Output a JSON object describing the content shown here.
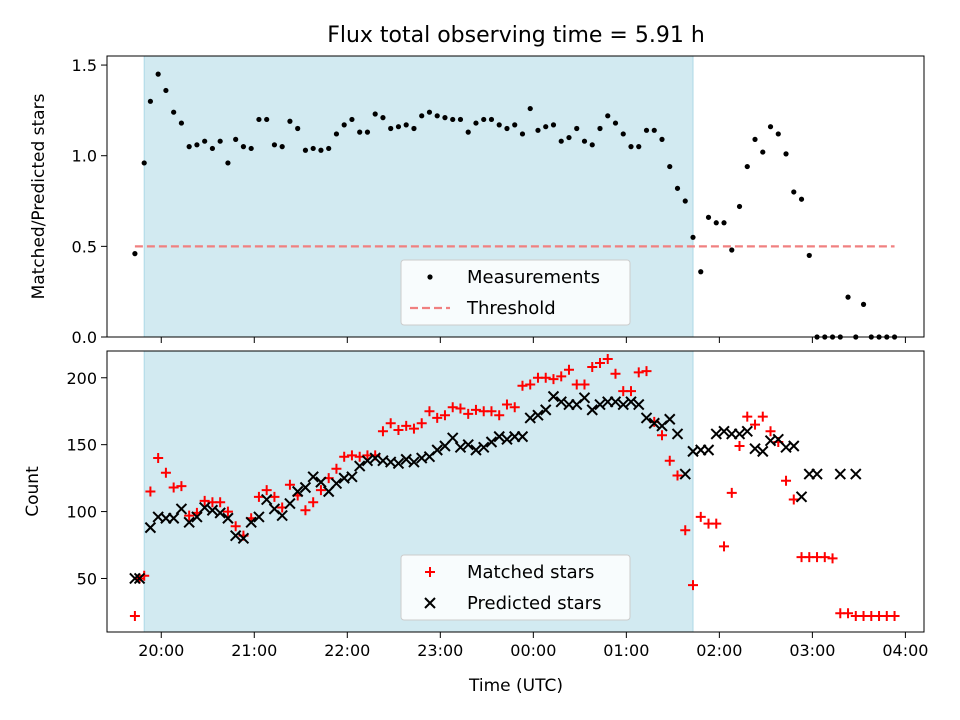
{
  "chart_data": {
    "type": "scatter",
    "title": "Flux total observing time = 5.91 h",
    "xlabel": "Time (UTC)",
    "x_tick_labels": [
      "20:00",
      "21:00",
      "22:00",
      "23:00",
      "00:00",
      "01:00",
      "02:00",
      "03:00",
      "04:00"
    ],
    "x_range": [
      "19:25",
      "04:12"
    ],
    "shaded_span": [
      "19:49",
      "01:43"
    ],
    "colors": {
      "measurements": "#000000",
      "threshold": "#f08080",
      "matched": "#ff0000",
      "predicted": "#000000",
      "shade": "#add8e6"
    },
    "panels": [
      {
        "ylabel": "Matched/Predicted stars",
        "ylim": [
          0,
          1.55
        ],
        "y_ticks": [
          "0.0",
          "0.5",
          "1.0",
          "1.5"
        ],
        "legend_position": "lower-center",
        "series": [
          {
            "name": "Measurements",
            "marker": "dot",
            "x": [
              "19:43",
              "19:49",
              "19:53",
              "19:58",
              "20:03",
              "20:08",
              "20:13",
              "20:18",
              "20:23",
              "20:28",
              "20:33",
              "20:38",
              "20:43",
              "20:48",
              "20:53",
              "20:58",
              "21:03",
              "21:08",
              "21:13",
              "21:18",
              "21:23",
              "21:28",
              "21:33",
              "21:38",
              "21:43",
              "21:48",
              "21:53",
              "21:58",
              "22:03",
              "22:08",
              "22:13",
              "22:18",
              "22:23",
              "22:28",
              "22:33",
              "22:38",
              "22:43",
              "22:48",
              "22:53",
              "22:58",
              "23:03",
              "23:08",
              "23:13",
              "23:18",
              "23:23",
              "23:28",
              "23:33",
              "23:38",
              "23:43",
              "23:48",
              "23:53",
              "23:58",
              "00:03",
              "00:08",
              "00:13",
              "00:18",
              "00:23",
              "00:28",
              "00:33",
              "00:38",
              "00:43",
              "00:48",
              "00:53",
              "00:58",
              "01:03",
              "01:08",
              "01:13",
              "01:18",
              "01:23",
              "01:28",
              "01:33",
              "01:38",
              "01:43",
              "01:48",
              "01:53",
              "01:58",
              "02:03",
              "02:08",
              "02:13",
              "02:18",
              "02:23",
              "02:28",
              "02:33",
              "02:38",
              "02:43",
              "02:48",
              "02:53",
              "02:58",
              "03:03",
              "03:08",
              "03:13",
              "03:18",
              "03:23",
              "03:28",
              "03:33",
              "03:38",
              "03:43",
              "03:48",
              "03:53"
            ],
            "y": [
              0.46,
              0.96,
              1.3,
              1.45,
              1.36,
              1.24,
              1.18,
              1.05,
              1.06,
              1.08,
              1.04,
              1.08,
              0.96,
              1.09,
              1.05,
              1.04,
              1.2,
              1.2,
              1.06,
              1.05,
              1.19,
              1.15,
              1.03,
              1.04,
              1.03,
              1.04,
              1.12,
              1.17,
              1.2,
              1.13,
              1.13,
              1.23,
              1.21,
              1.15,
              1.16,
              1.17,
              1.15,
              1.22,
              1.24,
              1.22,
              1.21,
              1.2,
              1.2,
              1.13,
              1.18,
              1.2,
              1.2,
              1.17,
              1.15,
              1.17,
              1.12,
              1.26,
              1.14,
              1.16,
              1.17,
              1.08,
              1.1,
              1.15,
              1.08,
              1.06,
              1.15,
              1.22,
              1.18,
              1.12,
              1.05,
              1.05,
              1.14,
              1.14,
              1.09,
              0.94,
              0.82,
              0.75,
              0.55,
              0.36,
              0.66,
              0.63,
              0.63,
              0.48,
              0.72,
              0.94,
              1.09,
              1.02,
              1.16,
              1.12,
              1.01,
              0.8,
              0.76,
              0.45,
              0.0,
              0.0,
              0.0,
              0.0,
              0.22,
              0.0,
              0.18,
              0.0,
              0.0,
              0.0,
              0.0
            ]
          },
          {
            "name": "Threshold",
            "marker": "dashed-line",
            "x": [
              "19:43",
              "03:53"
            ],
            "y": [
              0.5,
              0.5
            ]
          }
        ]
      },
      {
        "ylabel": "Count",
        "ylim": [
          10,
          220
        ],
        "y_ticks": [
          "50",
          "100",
          "150",
          "200"
        ],
        "legend_position": "lower-center",
        "series": [
          {
            "name": "Matched stars",
            "marker": "plus",
            "x": [
              "19:43",
              "19:46",
              "19:49",
              "19:53",
              "19:58",
              "20:03",
              "20:08",
              "20:13",
              "20:18",
              "20:23",
              "20:28",
              "20:33",
              "20:38",
              "20:43",
              "20:48",
              "20:53",
              "20:58",
              "21:03",
              "21:08",
              "21:13",
              "21:18",
              "21:23",
              "21:28",
              "21:33",
              "21:38",
              "21:43",
              "21:48",
              "21:53",
              "21:58",
              "22:03",
              "22:08",
              "22:13",
              "22:18",
              "22:23",
              "22:28",
              "22:33",
              "22:38",
              "22:43",
              "22:48",
              "22:53",
              "22:58",
              "23:03",
              "23:08",
              "23:13",
              "23:18",
              "23:23",
              "23:28",
              "23:33",
              "23:38",
              "23:43",
              "23:48",
              "23:53",
              "23:58",
              "00:03",
              "00:08",
              "00:13",
              "00:18",
              "00:23",
              "00:28",
              "00:33",
              "00:38",
              "00:43",
              "00:48",
              "00:53",
              "00:58",
              "01:03",
              "01:08",
              "01:13",
              "01:18",
              "01:23",
              "01:28",
              "01:33",
              "01:38",
              "01:43",
              "01:48",
              "01:53",
              "01:58",
              "02:03",
              "02:08",
              "02:13",
              "02:18",
              "02:23",
              "02:28",
              "02:33",
              "02:38",
              "02:43",
              "02:48",
              "02:53",
              "02:58",
              "03:03",
              "03:08",
              "03:13",
              "03:18",
              "03:23",
              "03:28",
              "03:33",
              "03:38",
              "03:43",
              "03:48",
              "03:53"
            ],
            "y": [
              22,
              50,
              52,
              115,
              140,
              129,
              118,
              119,
              97,
              99,
              108,
              107,
              107,
              100,
              89,
              82,
              95,
              111,
              116,
              111,
              103,
              120,
              112,
              101,
              107,
              116,
              125,
              132,
              141,
              142,
              141,
              142,
              142,
              160,
              166,
              161,
              164,
              162,
              166,
              175,
              170,
              172,
              178,
              177,
              173,
              176,
              175,
              175,
              172,
              180,
              178,
              194,
              195,
              200,
              200,
              199,
              201,
              206,
              195,
              195,
              208,
              211,
              214,
              203,
              190,
              190,
              204,
              205,
              167,
              157,
              138,
              127,
              86,
              45,
              96,
              91,
              91,
              74,
              114,
              149,
              171,
              165,
              171,
              160,
              152,
              123,
              109,
              66,
              66,
              66,
              66,
              65,
              24,
              24,
              22,
              22,
              22,
              22,
              22,
              22
            ]
          },
          {
            "name": "Predicted stars",
            "marker": "x",
            "x": [
              "19:43",
              "19:46",
              "19:53",
              "19:58",
              "20:03",
              "20:08",
              "20:13",
              "20:18",
              "20:23",
              "20:28",
              "20:33",
              "20:38",
              "20:43",
              "20:48",
              "20:53",
              "20:58",
              "21:03",
              "21:08",
              "21:13",
              "21:18",
              "21:23",
              "21:28",
              "21:33",
              "21:38",
              "21:43",
              "21:48",
              "21:53",
              "21:58",
              "22:03",
              "22:08",
              "22:13",
              "22:18",
              "22:23",
              "22:28",
              "22:33",
              "22:38",
              "22:43",
              "22:48",
              "22:53",
              "22:58",
              "23:03",
              "23:08",
              "23:13",
              "23:18",
              "23:23",
              "23:28",
              "23:33",
              "23:38",
              "23:43",
              "23:48",
              "23:53",
              "23:58",
              "00:03",
              "00:08",
              "00:13",
              "00:18",
              "00:23",
              "00:28",
              "00:33",
              "00:38",
              "00:43",
              "00:48",
              "00:53",
              "00:58",
              "01:03",
              "01:08",
              "01:13",
              "01:18",
              "01:23",
              "01:28",
              "01:33",
              "01:38",
              "01:43",
              "01:48",
              "01:53",
              "01:58",
              "02:03",
              "02:08",
              "02:13",
              "02:18",
              "02:23",
              "02:28",
              "02:33",
              "02:38",
              "02:43",
              "02:48",
              "02:53",
              "02:58",
              "03:03",
              "03:18",
              "03:28"
            ],
            "y": [
              50,
              50,
              88,
              96,
              95,
              95,
              102,
              92,
              96,
              103,
              101,
              99,
              95,
              82,
              80,
              92,
              96,
              109,
              102,
              97,
              106,
              115,
              118,
              126,
              122,
              115,
              121,
              125,
              126,
              134,
              138,
              140,
              138,
              137,
              136,
              139,
              137,
              140,
              141,
              146,
              149,
              155,
              148,
              150,
              146,
              148,
              152,
              156,
              154,
              156,
              156,
              170,
              172,
              176,
              186,
              182,
              180,
              180,
              185,
              176,
              180,
              182,
              182,
              180,
              182,
              180,
              170,
              166,
              164,
              169,
              158,
              128,
              145,
              146,
              146,
              158,
              160,
              158,
              158,
              160,
              147,
              145,
              153,
              154,
              148,
              149,
              111,
              128,
              128,
              128,
              128
            ]
          }
        ]
      }
    ]
  }
}
